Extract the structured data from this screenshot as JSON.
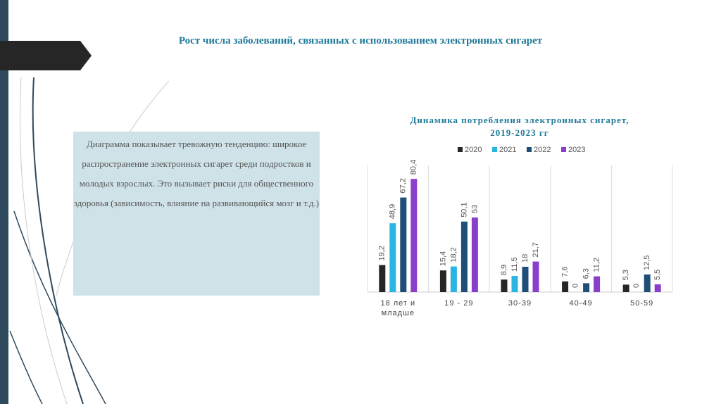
{
  "slide": {
    "title": "Рост числа заболеваний, связанных с использованием электронных сигарет",
    "text": "Диаграмма показывает тревожную тенденцию: широкое распространение электронных сигарет среди подростков и молодых взрослых. Это вызывает риски для общественного здоровья (зависимость, влияние на развивающийся мозг и т.д.)"
  },
  "chart_data": {
    "type": "bar",
    "title": "Динамика потребления электронных сигарет, 2019-2023 гг",
    "categories": [
      "18 лет и младше",
      "19 - 29",
      "30-39",
      "40-49",
      "50-59"
    ],
    "series": [
      {
        "name": "2020",
        "color": "#262626",
        "values": [
          19.2,
          15.4,
          8.9,
          7.6,
          5.3
        ],
        "value_labels": [
          "19,2",
          "15,4",
          "8,9",
          "7,6",
          "5,3"
        ]
      },
      {
        "name": "2021",
        "color": "#2bb5e3",
        "values": [
          48.9,
          18.2,
          11.5,
          0,
          0
        ],
        "value_labels": [
          "48,9",
          "18,2",
          "11,5",
          "0",
          "0"
        ]
      },
      {
        "name": "2022",
        "color": "#1f4e79",
        "values": [
          67.2,
          50.1,
          18,
          6.3,
          12.5
        ],
        "value_labels": [
          "67,2",
          "50,1",
          "18",
          "6,3",
          "12,5"
        ]
      },
      {
        "name": "2023",
        "color": "#8a3fcc",
        "values": [
          80.4,
          53,
          21.7,
          11.2,
          5.5
        ],
        "value_labels": [
          "80,4",
          "53",
          "21,7",
          "11,2",
          "5,5"
        ]
      }
    ],
    "ylim": [
      0,
      90
    ],
    "legend": "top"
  }
}
